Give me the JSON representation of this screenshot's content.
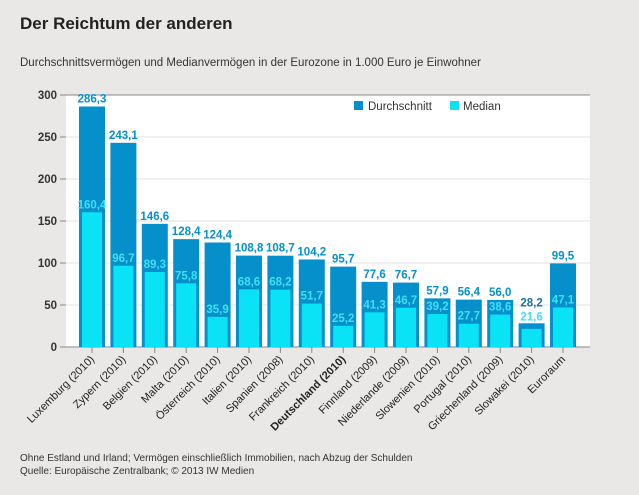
{
  "chart_data": {
    "type": "bar",
    "title": "Der Reichtum der anderen",
    "subtitle": "Durchschnittsvermögen und Medianvermögen in der Eurozone in 1.000 Euro je Einwohner",
    "categories": [
      "Luxemburg (2010)",
      "Zypern (2010)",
      "Belgien (2010)",
      "Malta (2010)",
      "Österreich (2010)",
      "Italien (2010)",
      "Spanien (2008)",
      "Frankreich (2010)",
      "Deutschland (2010)",
      "Finnland (2009)",
      "Niederlande (2009)",
      "Slowenien (2010)",
      "Portugal (2010)",
      "Griechenland (2009)",
      "Slowakei (2010)",
      "Euroraum"
    ],
    "highlight_category": "Deutschland (2010)",
    "series": [
      {
        "name": "Durchschnitt",
        "color": "#0590cc",
        "values": [
          286.3,
          243.1,
          146.6,
          128.4,
          124.4,
          108.8,
          108.7,
          104.2,
          95.7,
          77.6,
          76.7,
          57.9,
          56.4,
          56.0,
          28.2,
          99.5
        ],
        "labels": [
          "286,3",
          "243,1",
          "146,6",
          "128,4",
          "124,4",
          "108,8",
          "108,7",
          "104,2",
          "95,7",
          "77,6",
          "76,7",
          "57,9",
          "56,4",
          "56,0",
          "28,2",
          "99,5"
        ]
      },
      {
        "name": "Median",
        "color": "#0ae3f5",
        "values": [
          160.4,
          96.7,
          89.3,
          75.8,
          35.9,
          68.6,
          68.2,
          51.7,
          25.2,
          41.3,
          46.7,
          39.2,
          27.7,
          38.6,
          21.6,
          47.1
        ],
        "labels": [
          "160,4",
          "96,7",
          "89,3",
          "75,8",
          "35,9",
          "68,6",
          "68,2",
          "51,7",
          "25,2",
          "41,3",
          "46,7",
          "39,2",
          "27,7",
          "38,6",
          "21,6",
          "47,1"
        ]
      }
    ],
    "ylim": [
      0,
      300
    ],
    "yticks": [
      0,
      50,
      100,
      150,
      200,
      250,
      300
    ],
    "grid": true,
    "legend": "top-right",
    "xlabel": "",
    "ylabel": ""
  },
  "footer": {
    "note": "Ohne Estland und Irland; Vermögen einschließlich Immobilien, nach Abzug der Schulden",
    "source": "Quelle: Europäische Zentralbank; © 2013 IW Medien"
  }
}
